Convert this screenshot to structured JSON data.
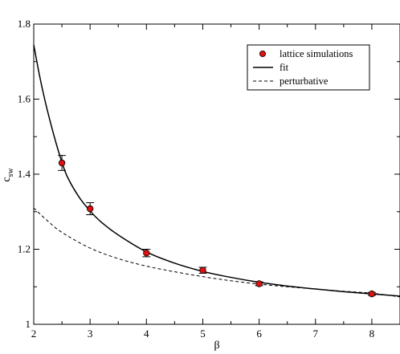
{
  "chart_data": {
    "type": "scatter",
    "title": "",
    "xlabel": "β",
    "ylabel_main": "c",
    "ylabel_sub": "sw",
    "xlim": [
      2,
      8.5
    ],
    "ylim": [
      1.0,
      1.8
    ],
    "x_ticks": [
      2,
      3,
      4,
      5,
      6,
      7,
      8
    ],
    "y_ticks": [
      1,
      1.2,
      1.4,
      1.6,
      1.8
    ],
    "x_tick_labels": [
      "2",
      "3",
      "4",
      "5",
      "6",
      "7",
      "8"
    ],
    "y_tick_labels": [
      "1",
      "1.2",
      "1.4",
      "1.6",
      "1.8"
    ],
    "grid": false,
    "legend_position": "top-right",
    "series": [
      {
        "name": "lattice simulations",
        "kind": "points",
        "color": "#e01010",
        "x": [
          2.5,
          3.0,
          4.0,
          5.0,
          6.0,
          8.0
        ],
        "y": [
          1.43,
          1.308,
          1.19,
          1.144,
          1.108,
          1.081
        ],
        "err": [
          0.02,
          0.016,
          0.01,
          0.008,
          0.005,
          0.004
        ]
      },
      {
        "name": "fit",
        "kind": "solid-line",
        "color": "#000000",
        "x": [
          2.0,
          2.1,
          2.2,
          2.3,
          2.4,
          2.5,
          2.6,
          2.8,
          3.0,
          3.2,
          3.5,
          4.0,
          4.5,
          5.0,
          5.5,
          6.0,
          6.5,
          7.0,
          7.5,
          8.0,
          8.5
        ],
        "y": [
          1.745,
          1.665,
          1.596,
          1.536,
          1.481,
          1.432,
          1.392,
          1.34,
          1.302,
          1.272,
          1.238,
          1.193,
          1.163,
          1.141,
          1.125,
          1.112,
          1.102,
          1.094,
          1.087,
          1.081,
          1.075
        ]
      },
      {
        "name": "perturbative",
        "kind": "dashed-line",
        "color": "#000000",
        "x": [
          2.0,
          2.25,
          2.5,
          3.0,
          3.5,
          4.0,
          4.5,
          5.0,
          5.5,
          6.0,
          6.5,
          7.0,
          7.5,
          8.0,
          8.5
        ],
        "y": [
          1.31,
          1.275,
          1.245,
          1.203,
          1.175,
          1.155,
          1.14,
          1.127,
          1.116,
          1.107,
          1.1,
          1.094,
          1.088,
          1.083,
          1.073
        ]
      }
    ]
  }
}
